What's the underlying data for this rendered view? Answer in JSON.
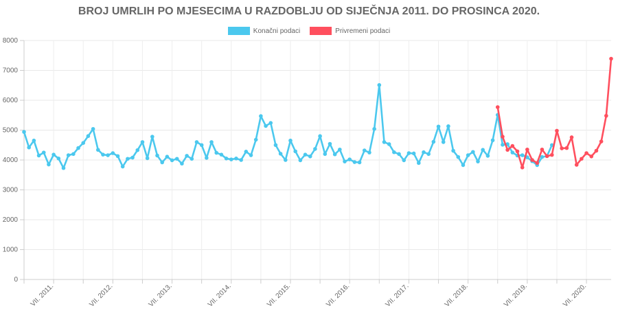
{
  "chart_data": {
    "type": "line",
    "title": "BROJ UMRLIH PO MJESECIMA U RAZDOBLJU OD SIJEČNJA 2011. DO PROSINCA 2020.",
    "xlabel": "",
    "ylabel": "",
    "ylim": [
      0,
      8000
    ],
    "yticks": [
      0,
      1000,
      2000,
      3000,
      4000,
      5000,
      6000,
      7000,
      8000
    ],
    "grid": true,
    "legend_position": "top-center",
    "x_tick_labels": [
      "VII. 2011.",
      "VII. 2012.",
      "VII. 2013.",
      "VII. 2014.",
      "VII. 2015.",
      "VII. 2016.",
      "VII. 2017.",
      "VII. 2018.",
      "VII. 2019.",
      "VII. 2020."
    ],
    "months": 120,
    "series": [
      {
        "name": "Konačni podaci",
        "color": "#4bc8ee",
        "start_index": 0,
        "values": [
          4940,
          4420,
          4650,
          4150,
          4250,
          3850,
          4180,
          4050,
          3730,
          4160,
          4200,
          4400,
          4570,
          4800,
          5040,
          4340,
          4180,
          4160,
          4230,
          4130,
          3780,
          4040,
          4080,
          4330,
          4600,
          4060,
          4780,
          4150,
          3920,
          4110,
          3990,
          4040,
          3880,
          4140,
          4040,
          4600,
          4500,
          4070,
          4600,
          4240,
          4180,
          4050,
          4020,
          4050,
          4000,
          4280,
          4160,
          4680,
          5470,
          5140,
          5240,
          4500,
          4210,
          4000,
          4650,
          4290,
          3990,
          4180,
          4120,
          4370,
          4800,
          4200,
          4540,
          4190,
          4350,
          3950,
          4020,
          3930,
          3920,
          4320,
          4250,
          5040,
          6510,
          4600,
          4530,
          4260,
          4200,
          3990,
          4230,
          4220,
          3900,
          4260,
          4200,
          4610,
          5120,
          4600,
          5130,
          4310,
          4100,
          3830,
          4160,
          4270,
          3950,
          4340,
          4140,
          4660,
          5510,
          4510,
          4530,
          4250,
          4150,
          4160,
          4090,
          3960,
          3830,
          4100,
          4130,
          4500
        ]
      },
      {
        "name": "Privremeni podaci",
        "color": "#ff4f5e",
        "start_index": 96,
        "values": [
          5770,
          4780,
          4340,
          4470,
          4290,
          3750,
          4350,
          4000,
          3900,
          4350,
          4130,
          4170,
          4980,
          4390,
          4400,
          4760,
          3840,
          4040,
          4230,
          4120,
          4310,
          4620,
          5480,
          7390
        ]
      }
    ]
  }
}
